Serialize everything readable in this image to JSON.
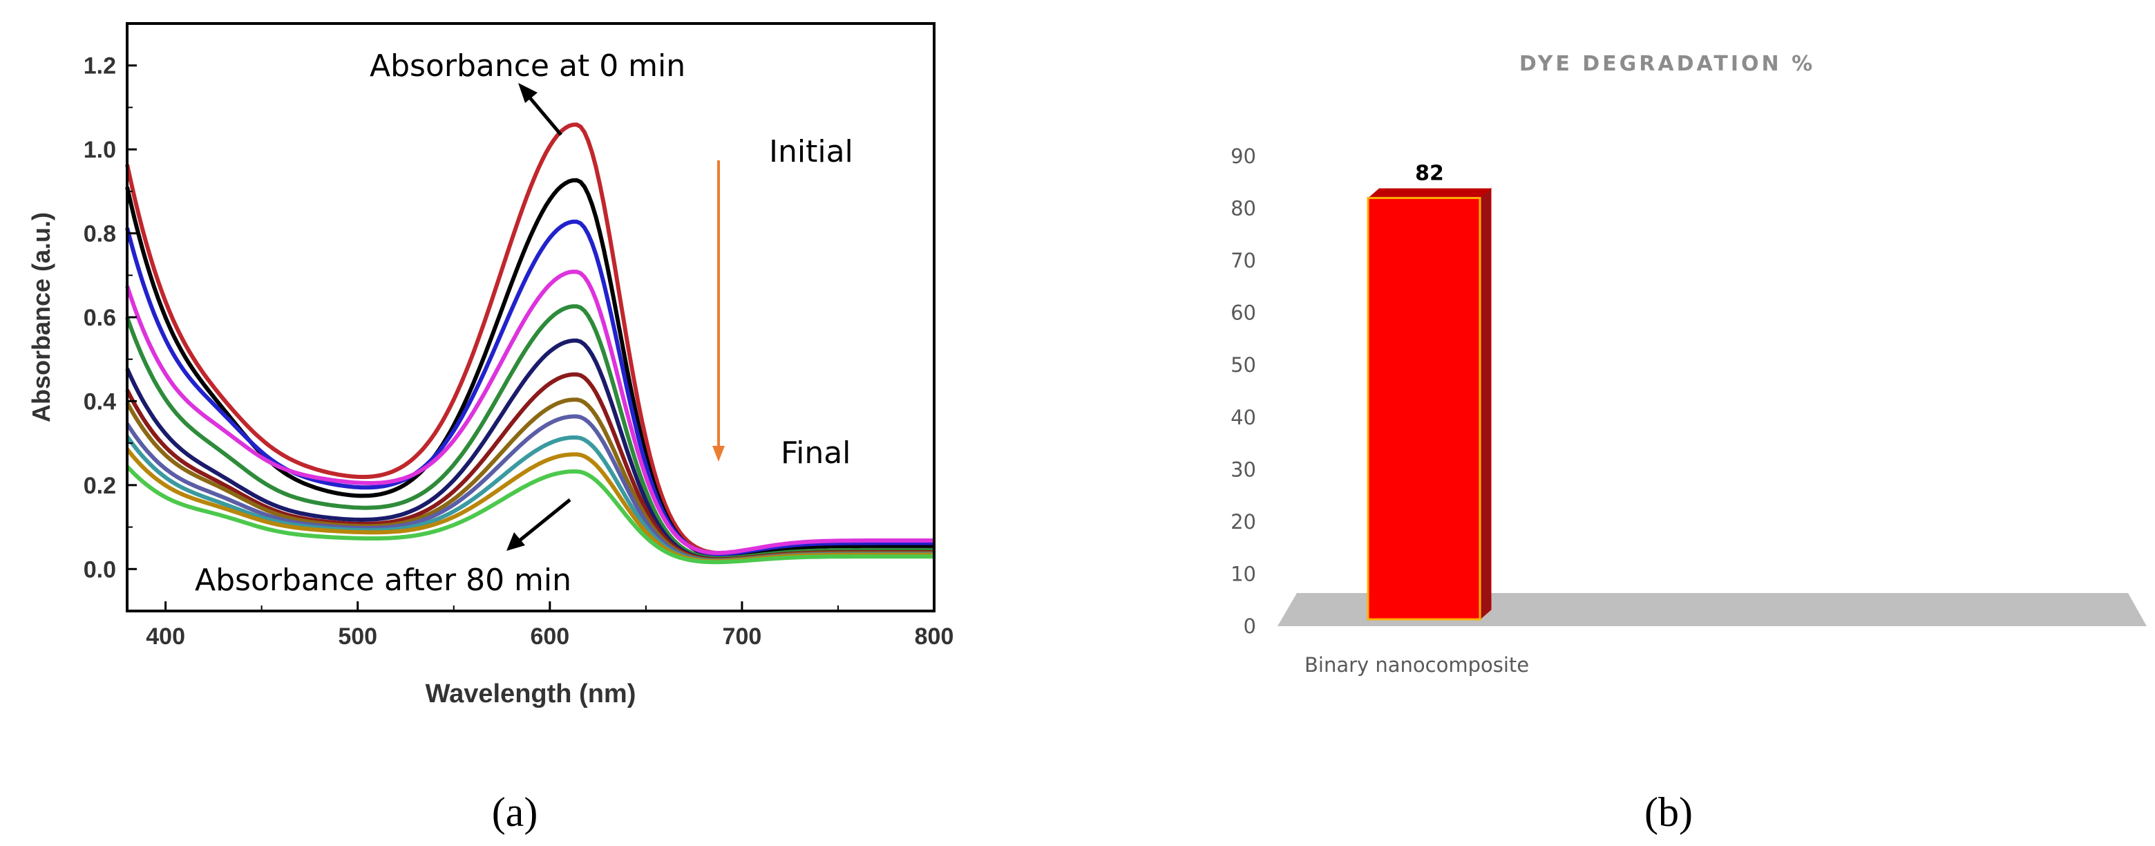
{
  "chart_data": [
    {
      "type": "line",
      "panel_label": "(a)",
      "xlabel": "Wavelength (nm)",
      "ylabel": "Absorbance (a.u.)",
      "xlim": [
        380,
        800
      ],
      "ylim": [
        -0.1,
        1.3
      ],
      "xticks": [
        400,
        500,
        600,
        700,
        800
      ],
      "yticks": [
        0.0,
        0.2,
        0.4,
        0.6,
        0.8,
        1.0,
        1.2
      ],
      "annotations": {
        "top": "Absorbance at 0 min",
        "bottom": "Absorbance after 80 min",
        "initial": "Initial",
        "final": "Final"
      },
      "arrow_color": "#ED7D31",
      "series": [
        {
          "color": "#C0272D",
          "peak": 1.05,
          "start": 0.95,
          "valley": 0.225,
          "tail": 0.065,
          "shoulder": 0.035
        },
        {
          "color": "#000000",
          "peak": 0.92,
          "start": 0.9,
          "valley": 0.18,
          "tail": 0.055,
          "shoulder": 0.05
        },
        {
          "color": "#2222CC",
          "peak": 0.82,
          "start": 0.8,
          "valley": 0.2,
          "tail": 0.062,
          "shoulder": 0.05
        },
        {
          "color": "#DD33DD",
          "peak": 0.7,
          "start": 0.66,
          "valley": 0.21,
          "tail": 0.068,
          "shoulder": 0.04
        },
        {
          "color": "#2E8B3A",
          "peak": 0.62,
          "start": 0.59,
          "valley": 0.15,
          "tail": 0.045,
          "shoulder": 0.04
        },
        {
          "color": "#1B1B6B",
          "peak": 0.54,
          "start": 0.47,
          "valley": 0.12,
          "tail": 0.04,
          "shoulder": 0.03
        },
        {
          "color": "#8B1A1A",
          "peak": 0.46,
          "start": 0.42,
          "valley": 0.11,
          "tail": 0.04,
          "shoulder": 0.03
        },
        {
          "color": "#8B6914",
          "peak": 0.4,
          "start": 0.39,
          "valley": 0.105,
          "tail": 0.038,
          "shoulder": 0.03
        },
        {
          "color": "#5B5EA6",
          "peak": 0.36,
          "start": 0.34,
          "valley": 0.1,
          "tail": 0.036,
          "shoulder": 0.025
        },
        {
          "color": "#3A9AA0",
          "peak": 0.31,
          "start": 0.31,
          "valley": 0.095,
          "tail": 0.035,
          "shoulder": 0.02
        },
        {
          "color": "#B8860B",
          "peak": 0.27,
          "start": 0.28,
          "valley": 0.09,
          "tail": 0.034,
          "shoulder": 0.02
        },
        {
          "color": "#4CC84C",
          "peak": 0.23,
          "start": 0.24,
          "valley": 0.075,
          "tail": 0.03,
          "shoulder": 0.02
        }
      ]
    },
    {
      "type": "bar",
      "panel_label": "(b)",
      "title": "DYE DEGRADATION %",
      "categories": [
        "Binary nanocomposite"
      ],
      "values": [
        82
      ],
      "ylim": [
        0,
        90
      ],
      "yticks": [
        0,
        10,
        20,
        30,
        40,
        50,
        60,
        70,
        80,
        90
      ],
      "bar_color": "#FF0000",
      "floor_color": "#BFBFBF"
    }
  ]
}
